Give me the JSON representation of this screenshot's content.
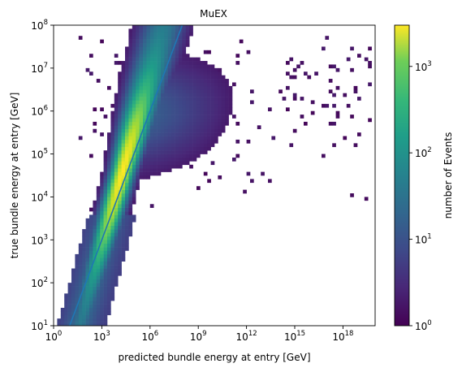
{
  "chart_data": {
    "type": "heatmap",
    "title": "MuEX",
    "xlabel": "predicted bundle energy at entry [GeV]",
    "ylabel": "true bundle energy at entry [GeV]",
    "x_scale": "log",
    "y_scale": "log",
    "xlim": [
      1,
      1e+20
    ],
    "ylim": [
      10,
      100000000.0
    ],
    "x_ticks": [
      {
        "value": 1,
        "base": "10",
        "exp": "0"
      },
      {
        "value": 1000.0,
        "base": "10",
        "exp": "3"
      },
      {
        "value": 1000000.0,
        "base": "10",
        "exp": "6"
      },
      {
        "value": 1000000000.0,
        "base": "10",
        "exp": "9"
      },
      {
        "value": 1000000000000.0,
        "base": "10",
        "exp": "12"
      },
      {
        "value": 1000000000000000.0,
        "base": "10",
        "exp": "15"
      },
      {
        "value": 1e+18,
        "base": "10",
        "exp": "18"
      }
    ],
    "y_ticks": [
      {
        "value": 10,
        "base": "10",
        "exp": "1"
      },
      {
        "value": 100.0,
        "base": "10",
        "exp": "2"
      },
      {
        "value": 1000.0,
        "base": "10",
        "exp": "3"
      },
      {
        "value": 10000.0,
        "base": "10",
        "exp": "4"
      },
      {
        "value": 100000.0,
        "base": "10",
        "exp": "5"
      },
      {
        "value": 1000000.0,
        "base": "10",
        "exp": "6"
      },
      {
        "value": 10000000.0,
        "base": "10",
        "exp": "7"
      },
      {
        "value": 100000000.0,
        "base": "10",
        "exp": "8"
      }
    ],
    "colorbar": {
      "label": "number of Events",
      "scale": "log",
      "colormap": "viridis",
      "range": [
        1,
        3000
      ],
      "ticks": [
        {
          "value": 1,
          "base": "10",
          "exp": "0"
        },
        {
          "value": 10,
          "base": "10",
          "exp": "1"
        },
        {
          "value": 100,
          "base": "10",
          "exp": "2"
        },
        {
          "value": 1000,
          "base": "10",
          "exp": "3"
        }
      ]
    },
    "reference_line": {
      "name": "y = x",
      "color": "#1f77b4"
    },
    "density_model": {
      "ridge_slope_decades": 1.35,
      "core_center_log_x": 4.3,
      "core_center_log_y": 4.6,
      "peak_count": 3000
    }
  }
}
